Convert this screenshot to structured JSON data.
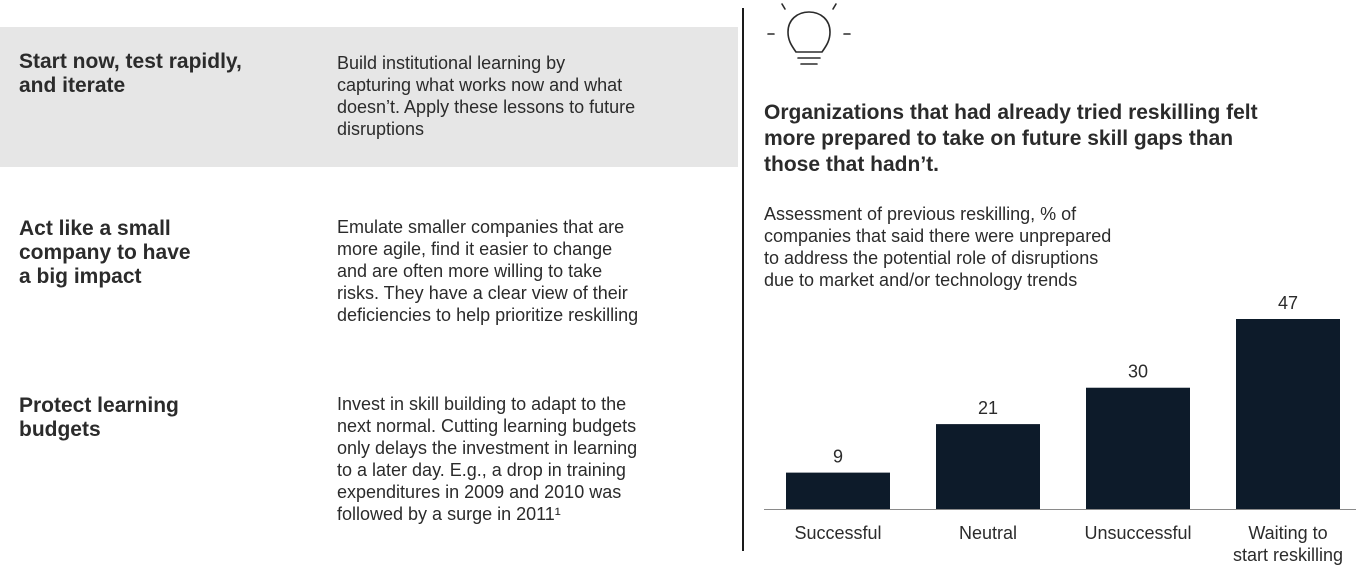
{
  "strategies": [
    {
      "title": "Start now, test rapidly,\nand iterate",
      "description": "Build institutional learning by\ncapturing what works now and what\ndoesn’t. Apply these lessons to future\ndisruptions"
    },
    {
      "title": "Act like a small\ncompany to have\na big impact",
      "description": "Emulate smaller companies that are\nmore agile, find it easier to change\nand are often more willing to take\nrisks. They have a clear view of their\ndeficiencies to help prioritize reskilling"
    },
    {
      "title": "Protect learning\nbudgets",
      "description": "Invest in skill building to adapt to the\nnext normal. Cutting learning budgets\nonly delays the investment in learning\nto a later day. E.g., a drop in training\nexpenditures in 2009 and 2010 was\nfollowed by a surge in 2011¹"
    }
  ],
  "icon": "lightbulb-icon",
  "colors": {
    "bar": "#0d1b2a",
    "shade": "#e6e6e6",
    "text": "#2b2b2b"
  },
  "chart_data": {
    "type": "bar",
    "title": "Organizations that had already tried reskilling felt\nmore prepared to take on future skill gaps than\nthose that hadn’t.",
    "subtitle": "Assessment of previous reskilling, % of\ncompanies that said there were unprepared\nto address the potential role of disruptions\ndue to market and/or technology trends",
    "categories": [
      "Successful",
      "Neutral",
      "Unsuccessful",
      "Waiting to\nstart reskilling"
    ],
    "values": [
      9,
      21,
      30,
      47
    ],
    "data_labels": [
      "9",
      "21",
      "30",
      "47"
    ],
    "ylim": [
      0,
      47
    ],
    "grid": false,
    "legend": "none"
  }
}
